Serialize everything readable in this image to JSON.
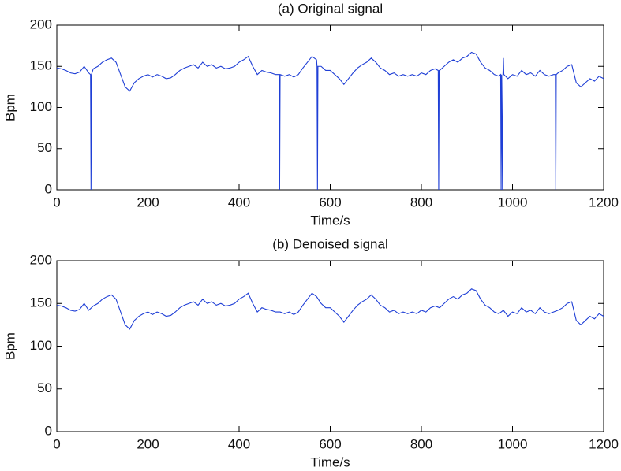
{
  "chart_data": [
    {
      "type": "line",
      "title": "(a) Original signal",
      "xlabel": "Time/s",
      "ylabel": "Bpm",
      "color": "#1f3fd6",
      "xlim": [
        0,
        1200
      ],
      "xticks": [
        0,
        200,
        400,
        600,
        800,
        1000,
        1200
      ],
      "ylim": [
        0,
        200
      ],
      "yticks": [
        0,
        50,
        100,
        150,
        200
      ],
      "x": [
        0,
        10,
        20,
        30,
        40,
        50,
        60,
        70,
        74,
        75,
        76,
        80,
        90,
        100,
        110,
        120,
        130,
        140,
        150,
        160,
        170,
        180,
        190,
        200,
        210,
        220,
        230,
        240,
        250,
        260,
        270,
        280,
        290,
        300,
        310,
        320,
        330,
        340,
        350,
        360,
        370,
        380,
        390,
        400,
        410,
        420,
        430,
        440,
        450,
        460,
        470,
        480,
        488,
        489,
        490,
        500,
        510,
        520,
        530,
        540,
        550,
        560,
        570,
        571,
        572,
        573,
        580,
        590,
        600,
        610,
        620,
        630,
        640,
        650,
        660,
        670,
        680,
        690,
        700,
        710,
        720,
        730,
        740,
        750,
        760,
        770,
        780,
        790,
        800,
        810,
        820,
        830,
        837,
        838,
        839,
        840,
        850,
        860,
        870,
        880,
        890,
        900,
        910,
        920,
        930,
        940,
        950,
        960,
        970,
        974,
        975,
        976,
        978,
        979,
        980,
        981,
        990,
        1000,
        1010,
        1020,
        1030,
        1040,
        1050,
        1060,
        1070,
        1080,
        1090,
        1094,
        1095,
        1096,
        1100,
        1110,
        1120,
        1130,
        1140,
        1150,
        1160,
        1170,
        1180,
        1190,
        1200
      ],
      "values": [
        148,
        147,
        145,
        142,
        141,
        143,
        150,
        142,
        140,
        0,
        140,
        147,
        150,
        155,
        158,
        160,
        155,
        140,
        125,
        120,
        130,
        135,
        138,
        140,
        137,
        140,
        138,
        135,
        136,
        140,
        145,
        148,
        150,
        152,
        148,
        155,
        150,
        152,
        148,
        150,
        147,
        148,
        150,
        155,
        158,
        162,
        150,
        140,
        145,
        143,
        142,
        140,
        140,
        0,
        140,
        138,
        140,
        137,
        140,
        148,
        155,
        162,
        158,
        150,
        0,
        150,
        150,
        145,
        145,
        140,
        135,
        128,
        135,
        142,
        148,
        152,
        155,
        160,
        155,
        148,
        145,
        140,
        142,
        138,
        140,
        138,
        140,
        138,
        142,
        140,
        145,
        147,
        145,
        0,
        145,
        145,
        150,
        155,
        158,
        155,
        160,
        162,
        167,
        165,
        155,
        148,
        145,
        140,
        138,
        140,
        0,
        140,
        0,
        140,
        160,
        140,
        135,
        140,
        138,
        145,
        140,
        142,
        138,
        145,
        140,
        138,
        140,
        140,
        0,
        140,
        142,
        145,
        150,
        152,
        130,
        125,
        130,
        135,
        132,
        138,
        135
      ]
    },
    {
      "type": "line",
      "title": "(b) Denoised signal",
      "xlabel": "Time/s",
      "ylabel": "Bpm",
      "color": "#1f3fd6",
      "xlim": [
        0,
        1200
      ],
      "xticks": [
        0,
        200,
        400,
        600,
        800,
        1000,
        1200
      ],
      "ylim": [
        0,
        200
      ],
      "yticks": [
        0,
        50,
        100,
        150,
        200
      ],
      "x": [
        0,
        10,
        20,
        30,
        40,
        50,
        60,
        70,
        80,
        90,
        100,
        110,
        120,
        130,
        140,
        150,
        160,
        170,
        180,
        190,
        200,
        210,
        220,
        230,
        240,
        250,
        260,
        270,
        280,
        290,
        300,
        310,
        320,
        330,
        340,
        350,
        360,
        370,
        380,
        390,
        400,
        410,
        420,
        430,
        440,
        450,
        460,
        470,
        480,
        490,
        500,
        510,
        520,
        530,
        540,
        550,
        560,
        570,
        580,
        590,
        600,
        610,
        620,
        630,
        640,
        650,
        660,
        670,
        680,
        690,
        700,
        710,
        720,
        730,
        740,
        750,
        760,
        770,
        780,
        790,
        800,
        810,
        820,
        830,
        840,
        850,
        860,
        870,
        880,
        890,
        900,
        910,
        920,
        930,
        940,
        950,
        960,
        970,
        980,
        990,
        1000,
        1010,
        1020,
        1030,
        1040,
        1050,
        1060,
        1070,
        1080,
        1090,
        1100,
        1110,
        1120,
        1130,
        1140,
        1150,
        1160,
        1170,
        1180,
        1190,
        1200
      ],
      "values": [
        148,
        147,
        145,
        142,
        141,
        143,
        150,
        142,
        147,
        150,
        155,
        158,
        160,
        155,
        140,
        125,
        120,
        130,
        135,
        138,
        140,
        137,
        140,
        138,
        135,
        136,
        140,
        145,
        148,
        150,
        152,
        148,
        155,
        150,
        152,
        148,
        150,
        147,
        148,
        150,
        155,
        158,
        162,
        150,
        140,
        145,
        143,
        142,
        140,
        140,
        138,
        140,
        137,
        140,
        148,
        155,
        162,
        158,
        150,
        145,
        145,
        140,
        135,
        128,
        135,
        142,
        148,
        152,
        155,
        160,
        155,
        148,
        145,
        140,
        142,
        138,
        140,
        138,
        140,
        138,
        142,
        140,
        145,
        147,
        145,
        150,
        155,
        158,
        155,
        160,
        162,
        167,
        165,
        155,
        148,
        145,
        140,
        138,
        142,
        135,
        140,
        138,
        145,
        140,
        142,
        138,
        145,
        140,
        138,
        140,
        142,
        145,
        150,
        152,
        130,
        125,
        130,
        135,
        132,
        138,
        135
      ]
    }
  ]
}
